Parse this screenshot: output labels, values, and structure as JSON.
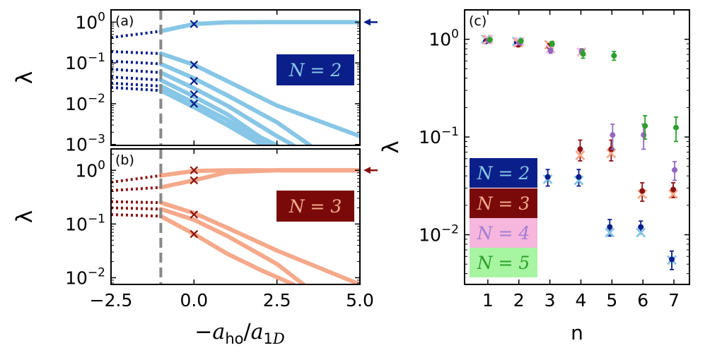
{
  "chart_data": [
    {
      "type": "line",
      "panel_label": "(a)",
      "ylabel": "λ",
      "xlim": [
        -2.5,
        5.0
      ],
      "ylim": [
        0.00095,
        2.0
      ],
      "yscale": "log",
      "xticks": [
        "−2.5",
        "0.0",
        "2.5",
        "5.0"
      ],
      "yticks": [
        {
          "value": 1,
          "label": "10⁰"
        },
        {
          "value": 0.1,
          "label": "10⁻¹"
        },
        {
          "value": 0.01,
          "label": "10⁻²"
        },
        {
          "value": 0.001,
          "label": "10⁻³"
        }
      ],
      "annotation": "N = 2",
      "annotation_color": "#0b1f8a",
      "line_color": "#87c6e6",
      "marker_color": "#0b1f8a",
      "vline_x": -1.0,
      "arrow_y": 1.0,
      "series": [
        {
          "x": [
            -2.5,
            -1.0,
            0.0,
            1.0,
            2.5,
            5.0
          ],
          "values": [
            0.42,
            0.6,
            0.9,
            0.99,
            1.0,
            1.0
          ]
        },
        {
          "x": [
            -2.5,
            -1.0,
            0.0,
            1.0,
            2.5,
            5.0
          ],
          "values": [
            0.19,
            0.17,
            0.09,
            0.036,
            0.009,
            0.0016
          ]
        },
        {
          "x": [
            -2.5,
            -1.0,
            0.0,
            1.0,
            2.5,
            3.5
          ],
          "values": [
            0.11,
            0.095,
            0.042,
            0.016,
            0.0035,
            0.00095
          ]
        },
        {
          "x": [
            -2.5,
            -1.0,
            0.0,
            1.0,
            2.5,
            3.0
          ],
          "values": [
            0.07,
            0.058,
            0.024,
            0.009,
            0.0016,
            0.00095
          ]
        },
        {
          "x": [
            -2.5,
            -1.0,
            0.0,
            1.0,
            2.0,
            2.5
          ],
          "values": [
            0.045,
            0.038,
            0.015,
            0.0055,
            0.0015,
            0.00095
          ]
        },
        {
          "x": [
            -2.5,
            -1.0,
            0.0,
            1.0,
            2.0,
            2.3
          ],
          "values": [
            0.032,
            0.027,
            0.0105,
            0.004,
            0.00125,
            0.00095
          ]
        },
        {
          "x": [
            -2.5,
            -1.0,
            0.0,
            1.0,
            1.8,
            2.1
          ],
          "values": [
            0.025,
            0.021,
            0.0082,
            0.003,
            0.00125,
            0.00095
          ]
        }
      ],
      "markers": [
        {
          "x": 0.0,
          "y": 0.9
        },
        {
          "x": 0.0,
          "y": 0.09
        },
        {
          "x": 0.0,
          "y": 0.036
        },
        {
          "x": 0.0,
          "y": 0.017
        },
        {
          "x": 0.0,
          "y": 0.01
        }
      ]
    },
    {
      "type": "line",
      "panel_label": "(b)",
      "ylabel": "λ",
      "xlabel": "−a_ho/a_1D",
      "xlim": [
        -2.5,
        5.0
      ],
      "ylim": [
        0.0075,
        2.5
      ],
      "yscale": "log",
      "xticks": [
        "−2.5",
        "0.0",
        "2.5",
        "5.0"
      ],
      "yticks": [
        {
          "value": 1,
          "label": "10⁰"
        },
        {
          "value": 0.1,
          "label": "10⁻¹"
        },
        {
          "value": 0.01,
          "label": "10⁻²"
        }
      ],
      "annotation": "N = 3",
      "annotation_color": "#7a0a0a",
      "line_color": "#f5a98b",
      "marker_color": "#8a1212",
      "vline_x": -1.0,
      "arrow_y": 1.0,
      "series": [
        {
          "x": [
            -2.5,
            -1.0,
            0.0,
            1.0,
            2.5,
            5.0
          ],
          "values": [
            0.6,
            0.8,
            0.97,
            1.0,
            1.0,
            1.0
          ]
        },
        {
          "x": [
            -2.5,
            -1.0,
            0.0,
            1.0,
            2.5,
            5.0
          ],
          "values": [
            0.42,
            0.48,
            0.65,
            0.92,
            1.0,
            1.0
          ]
        },
        {
          "x": [
            -2.5,
            -1.0,
            0.0,
            1.0,
            2.5,
            5.0
          ],
          "values": [
            0.26,
            0.25,
            0.16,
            0.085,
            0.032,
            0.0075
          ]
        },
        {
          "x": [
            -2.5,
            -1.0,
            0.0,
            1.0,
            2.5,
            3.3
          ],
          "values": [
            0.2,
            0.19,
            0.12,
            0.06,
            0.018,
            0.0075
          ]
        },
        {
          "x": [
            -2.5,
            -1.0,
            0.0,
            1.0,
            2.0,
            3.0
          ],
          "values": [
            0.15,
            0.14,
            0.065,
            0.028,
            0.014,
            0.0075
          ]
        }
      ],
      "markers": [
        {
          "x": 0.0,
          "y": 1.0
        },
        {
          "x": 0.0,
          "y": 0.65
        },
        {
          "x": 0.0,
          "y": 0.15
        },
        {
          "x": 0.0,
          "y": 0.065
        }
      ]
    },
    {
      "type": "scatter",
      "panel_label": "(c)",
      "ylabel": "λ",
      "xlabel": "n",
      "xlim": [
        0.25,
        7.5
      ],
      "ylim": [
        0.0031,
        2.0
      ],
      "yscale": "log",
      "xticks": [
        "1",
        "2",
        "3",
        "4",
        "5",
        "6",
        "7"
      ],
      "yticks": [
        {
          "value": 1,
          "label": "10⁰"
        },
        {
          "value": 0.1,
          "label": "10⁻¹"
        },
        {
          "value": 0.01,
          "label": "10⁻²"
        }
      ],
      "legend": [
        {
          "label": "N = 2",
          "bg": "#0b1f8a",
          "fg": "#87c6e6"
        },
        {
          "label": "N = 3",
          "bg": "#7a0a0a",
          "fg": "#f5a98b"
        },
        {
          "label": "N = 4",
          "bg": "#f7b6dd",
          "fg": "#a07ed3"
        },
        {
          "label": "N = 5",
          "bg": "#a7f5a0",
          "fg": "#2ca02c"
        }
      ],
      "series": [
        {
          "name": "N = 2",
          "color": "#0b1f8a",
          "cross_color": "#87c6e6",
          "x": [
            1,
            2,
            3,
            4,
            5,
            6,
            7
          ],
          "values": [
            0.95,
            0.93,
            0.039,
            0.039,
            0.012,
            0.012,
            0.0056
          ],
          "err": [
            0.03,
            0.03,
            0.0075,
            0.0075,
            0.0023,
            0.0018,
            0.0012
          ],
          "cross": [
            1.0,
            0.95,
            0.037,
            0.036,
            0.0105,
            0.0105,
            0.0055
          ]
        },
        {
          "name": "N = 3",
          "color": "#8a1212",
          "cross_color": "#f5a98b",
          "x": [
            1,
            2,
            3,
            4,
            5,
            6,
            7
          ],
          "values": [
            0.97,
            0.88,
            0.86,
            0.075,
            0.075,
            0.028,
            0.029
          ],
          "err": [
            0.03,
            0.04,
            0.05,
            0.018,
            0.018,
            0.006,
            0.005
          ],
          "cross": [
            0.99,
            0.92,
            0.88,
            0.065,
            0.068,
            0.026,
            0.026
          ]
        },
        {
          "name": "N = 4",
          "color": "#9467bd",
          "cross_color": "#f7b6dd",
          "x": [
            1,
            2,
            3,
            4,
            5,
            6,
            7
          ],
          "values": [
            0.97,
            0.92,
            0.77,
            0.75,
            0.105,
            0.105,
            0.046
          ],
          "err": [
            0.03,
            0.04,
            0.05,
            0.05,
            0.03,
            0.03,
            0.01
          ],
          "cross": [
            1.0,
            0.95,
            0.8,
            0.74,
            null,
            null,
            null
          ]
        },
        {
          "name": "N = 5",
          "color": "#2ca02c",
          "cross_color": "#a7f5a0",
          "x": [
            1,
            2,
            3,
            4,
            5,
            6,
            7
          ],
          "values": [
            0.99,
            0.96,
            0.9,
            0.71,
            0.68,
            0.13,
            0.125
          ],
          "err": [
            0.03,
            0.04,
            0.05,
            0.07,
            0.07,
            0.035,
            0.035
          ],
          "cross": [
            null,
            null,
            null,
            null,
            null,
            null,
            null
          ]
        }
      ]
    }
  ]
}
